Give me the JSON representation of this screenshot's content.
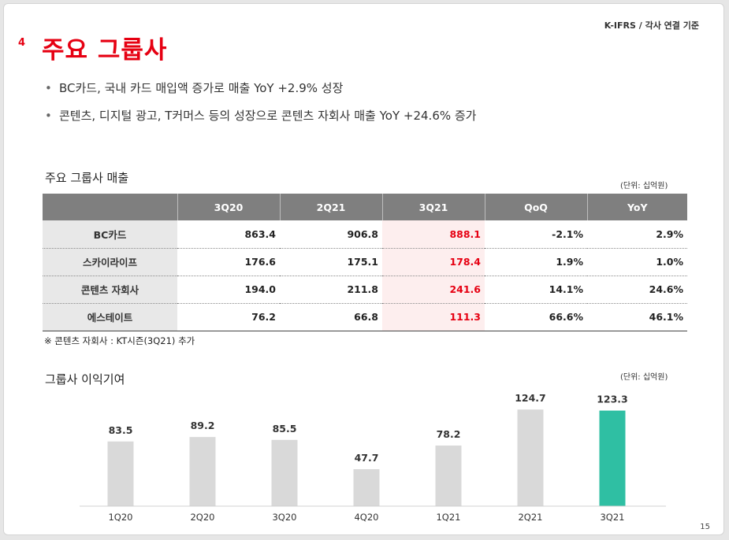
{
  "header": {
    "basis": "K-IFRS / 각사 연결 기준",
    "section_number": "4",
    "section_title": "주요 그룹사"
  },
  "bullets": [
    "BC카드, 국내 카드 매입액 증가로 매출 YoY +2.9%  성장",
    "콘텐츠, 디지털 광고, T커머스 등의 성장으로 콘텐츠 자회사 매출 YoY +24.6% 증가"
  ],
  "revenue_table": {
    "title": "주요 그룹사 매출",
    "unit": "(단위: 십억원)",
    "columns": [
      "",
      "3Q20",
      "2Q21",
      "3Q21",
      "QoQ",
      "YoY"
    ],
    "rows": [
      {
        "label": "BC카드",
        "values": [
          "863.4",
          "906.8",
          "888.1",
          "-2.1%",
          "2.9%"
        ]
      },
      {
        "label": "스카이라이프",
        "values": [
          "176.6",
          "175.1",
          "178.4",
          "1.9%",
          "1.0%"
        ]
      },
      {
        "label": "콘텐츠 자회사",
        "values": [
          "194.0",
          "211.8",
          "241.6",
          "14.1%",
          "24.6%"
        ]
      },
      {
        "label": "에스테이트",
        "values": [
          "76.2",
          "66.8",
          "111.3",
          "66.6%",
          "46.1%"
        ]
      }
    ],
    "highlight_color": "#e60012",
    "footnote": "※ 콘텐츠 자회사 : KT시즌(3Q21) 추가"
  },
  "profit_chart": {
    "title": "그룹사 이익기여",
    "unit": "(단위: 십억원)"
  },
  "chart_data": {
    "type": "bar",
    "categories": [
      "1Q20",
      "2Q20",
      "3Q20",
      "4Q20",
      "1Q21",
      "2Q21",
      "3Q21"
    ],
    "values": [
      83.5,
      89.2,
      85.5,
      47.7,
      78.2,
      124.7,
      123.3
    ],
    "value_labels": [
      "83.5",
      "89.2",
      "85.5",
      "47.7",
      "78.2",
      "124.7",
      "123.3"
    ],
    "title": "",
    "xlabel": "",
    "ylabel": "",
    "ylim": [
      0,
      130
    ],
    "grid": false,
    "legend": "none",
    "bar_color": "#d9d9d9",
    "highlight_index": 6,
    "highlight_color": "#2fbfa3"
  },
  "page_number": "15"
}
